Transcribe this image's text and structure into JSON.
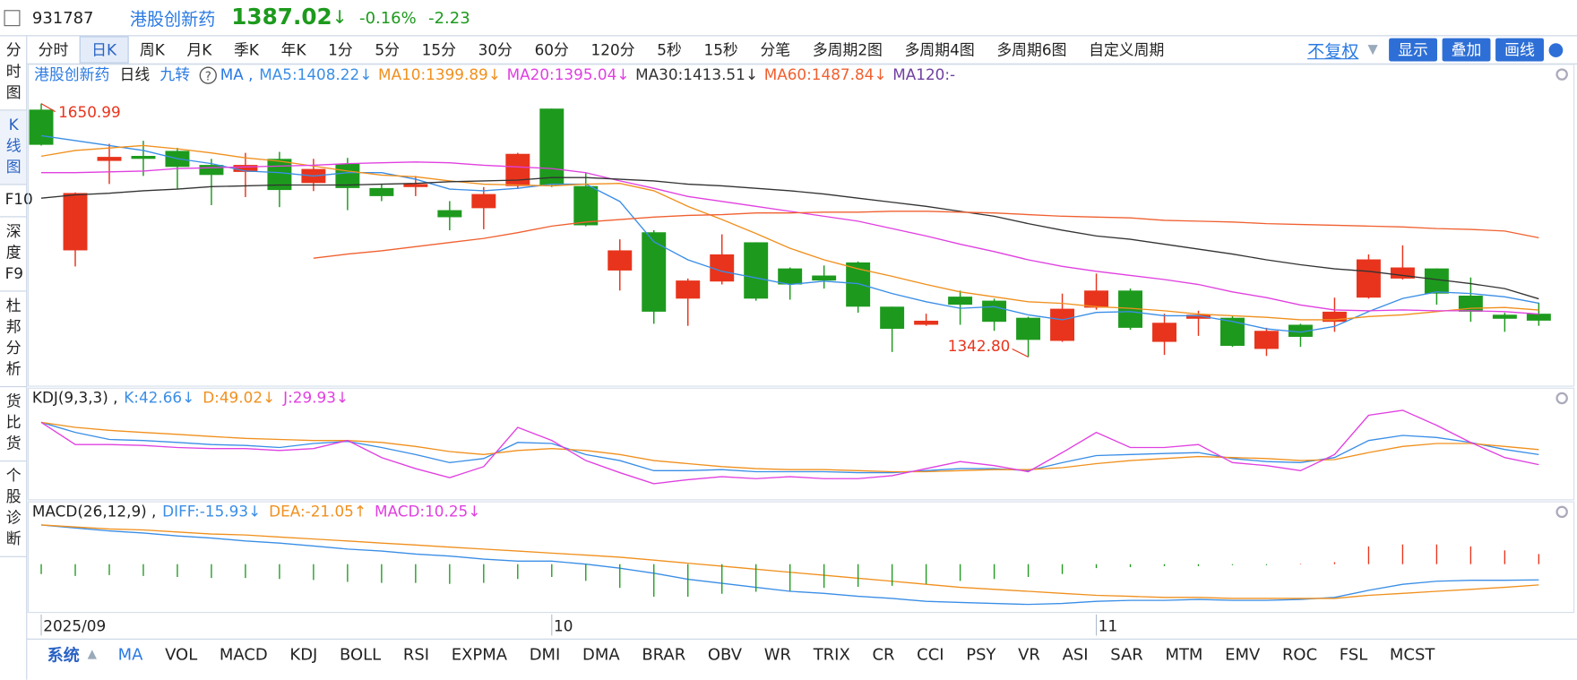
{
  "header": {
    "code": "931787",
    "name": "港股创新药",
    "price": "1387.02",
    "arrow": "↓",
    "change_pct": "-0.16%",
    "change": "-2.23"
  },
  "period_tabs": [
    "分时",
    "日K",
    "周K",
    "月K",
    "季K",
    "年K",
    "1分",
    "5分",
    "15分",
    "30分",
    "60分",
    "120分",
    "5秒",
    "15秒",
    "分笔",
    "多周期2图",
    "多周期4图",
    "多周期6图",
    "自定义周期"
  ],
  "active_period": "日K",
  "toolbar": {
    "adjust": "不复权",
    "buttons": [
      "显示",
      "叠加",
      "画线"
    ]
  },
  "sidebar_tabs": [
    "分时图",
    "K线图",
    "F10",
    "深度F9",
    "杜邦分析",
    "货比货",
    "个股诊断"
  ],
  "active_sidebar": "K线图",
  "indicator_tabs": {
    "system": "系统",
    "items": [
      "MA",
      "VOL",
      "MACD",
      "KDJ",
      "BOLL",
      "RSI",
      "EXPMA",
      "DMI",
      "DMA",
      "BRAR",
      "OBV",
      "WR",
      "TRIX",
      "CR",
      "CCI",
      "PSY",
      "VR",
      "ASI",
      "SAR",
      "MTM",
      "EMV",
      "ROC",
      "FSL",
      "MCST"
    ],
    "active": "MA"
  },
  "chart_data": [
    {
      "type": "candlestick",
      "legend_prefix": [
        "港股创新药",
        "日线",
        "九转"
      ],
      "legend_ma": "MA ,",
      "categories": [
        "2025/09",
        null,
        null,
        null,
        null,
        null,
        null,
        null,
        null,
        null,
        null,
        null,
        null,
        null,
        null,
        "10",
        null,
        null,
        null,
        null,
        null,
        null,
        null,
        null,
        null,
        null,
        null,
        null,
        null,
        null,
        null,
        "11",
        null,
        null,
        null,
        null,
        null,
        null,
        null,
        null,
        null,
        null,
        null,
        null,
        null
      ],
      "open": [
        1643.7,
        1472.5,
        1581.3,
        1587.4,
        1593.5,
        1576.4,
        1567.9,
        1583.8,
        1554.4,
        1577.7,
        1548.3,
        1549.5,
        1521.4,
        1523.8,
        1550.7,
        1644.9,
        1550.7,
        1448.0,
        1494.5,
        1413.8,
        1434.6,
        1482.3,
        1450.5,
        1441.9,
        1457.8,
        1404.0,
        1382.0,
        1416.2,
        1411.3,
        1390.5,
        1362.4,
        1402.8,
        1423.6,
        1361.2,
        1389.3,
        1390.5,
        1352.6,
        1382.0,
        1385.6,
        1415.0,
        1438.2,
        1450.5,
        1417.4,
        1394.2,
        1395.4
      ],
      "high": [
        1650.99,
        1543.0,
        1602.1,
        1605.8,
        1597.2,
        1583.8,
        1591.1,
        1592.3,
        1583.8,
        1585.0,
        1553.2,
        1563.0,
        1532.4,
        1549.5,
        1591.1,
        1644.9,
        1566.6,
        1485.9,
        1497.0,
        1438.2,
        1492.0,
        1482.3,
        1451.7,
        1454.1,
        1459.0,
        1404.0,
        1395.4,
        1423.6,
        1413.8,
        1391.8,
        1419.9,
        1444.3,
        1426.0,
        1395.4,
        1399.1,
        1393.0,
        1378.3,
        1383.2,
        1415.0,
        1467.6,
        1478.6,
        1450.5,
        1439.5,
        1396.6,
        1408.9
      ],
      "low": [
        1600.0,
        1452.9,
        1553.2,
        1563.0,
        1547.1,
        1527.5,
        1537.3,
        1525.1,
        1544.6,
        1521.4,
        1532.4,
        1538.5,
        1496.9,
        1498.2,
        1547.1,
        1549.5,
        1501.8,
        1423.6,
        1383.2,
        1380.7,
        1431.0,
        1411.3,
        1412.5,
        1426.0,
        1396.6,
        1348.9,
        1380.7,
        1382.0,
        1374.6,
        1342.8,
        1361.2,
        1400.3,
        1375.9,
        1345.3,
        1368.5,
        1355.1,
        1344.1,
        1355.1,
        1373.4,
        1413.8,
        1437.0,
        1406.4,
        1385.6,
        1373.4,
        1380.7
      ],
      "close": [
        1600.9,
        1542.2,
        1586.2,
        1583.8,
        1574.0,
        1564.2,
        1576.4,
        1545.9,
        1571.5,
        1548.3,
        1538.5,
        1553.2,
        1512.8,
        1541.0,
        1589.9,
        1552.0,
        1503.0,
        1472.5,
        1397.9,
        1435.8,
        1467.6,
        1413.8,
        1431.0,
        1435.8,
        1404.0,
        1377.1,
        1386.9,
        1406.4,
        1385.6,
        1363.6,
        1401.5,
        1423.6,
        1378.3,
        1384.4,
        1394.2,
        1356.3,
        1374.6,
        1367.3,
        1397.9,
        1461.5,
        1451.7,
        1419.9,
        1397.9,
        1389.3,
        1387.02
      ],
      "up_color": "#e8341c",
      "down_color": "#1d9a1d",
      "ylim": [
        1310,
        1670
      ],
      "high_label": "1650.99",
      "low_label": "1342.80",
      "series": [
        {
          "name": "MA5:1408.22↓",
          "color": "#3a8ee6",
          "values": [
            1612,
            1606,
            1600,
            1594,
            1584,
            1578,
            1569,
            1567,
            1563,
            1567,
            1567,
            1559,
            1547,
            1545,
            1548,
            1553,
            1553,
            1532,
            1483,
            1461,
            1447,
            1439,
            1431,
            1435,
            1432,
            1420,
            1410,
            1402,
            1404,
            1394,
            1388,
            1397,
            1398,
            1393,
            1393,
            1386,
            1377,
            1373,
            1380,
            1398,
            1414,
            1422,
            1420,
            1416,
            1408.22
          ]
        },
        {
          "name": "MA10:1399.89↓",
          "color": "#f0901e",
          "values": [
            1587,
            1594,
            1597,
            1600,
            1596,
            1591,
            1585,
            1581,
            1575,
            1569,
            1564,
            1562,
            1557,
            1553,
            1552,
            1551,
            1553,
            1554,
            1545,
            1526,
            1510,
            1493,
            1475,
            1461,
            1450,
            1441,
            1431,
            1422,
            1416,
            1410,
            1408,
            1404,
            1402,
            1399,
            1395,
            1393,
            1391,
            1388,
            1388,
            1392,
            1394,
            1398,
            1402,
            1403,
            1399.89
          ]
        },
        {
          "name": "MA20:1395.04↓",
          "color": "#e040e0",
          "values": [
            1567,
            1567,
            1568,
            1569,
            1572,
            1573,
            1574,
            1575,
            1576,
            1578,
            1579,
            1580,
            1579,
            1576,
            1574,
            1572,
            1567,
            1557,
            1548,
            1538,
            1532,
            1526,
            1520,
            1514,
            1508,
            1499,
            1490,
            1480,
            1471,
            1461,
            1453,
            1447,
            1442,
            1437,
            1431,
            1422,
            1415,
            1406,
            1400,
            1399,
            1400,
            1399,
            1399,
            1398,
            1395.04
          ]
        },
        {
          "name": "MA30:1413.51↓",
          "color": "#333333",
          "values": [
            1536,
            1540,
            1542,
            1545,
            1547,
            1550,
            1551,
            1552,
            1552,
            1552,
            1553,
            1554,
            1556,
            1557,
            1558,
            1561,
            1561,
            1559,
            1557,
            1553,
            1551,
            1548,
            1545,
            1541,
            1536,
            1531,
            1526,
            1520,
            1514,
            1505,
            1497,
            1490,
            1486,
            1480,
            1474,
            1468,
            1461,
            1455,
            1450,
            1447,
            1442,
            1437,
            1432,
            1426,
            1413.51
          ]
        },
        {
          "name": "MA60:1487.84↓",
          "color": "#f06030",
          "values": [
            null,
            null,
            null,
            null,
            null,
            null,
            null,
            null,
            1463,
            1468,
            1472,
            1477,
            1482,
            1487,
            1494,
            1502,
            1507,
            1510,
            1513,
            1515,
            1516,
            1518,
            1518,
            1519,
            1519,
            1520,
            1520,
            1519,
            1518,
            1516,
            1514,
            1513,
            1512,
            1509,
            1508,
            1507,
            1505,
            1504,
            1503,
            1502,
            1501,
            1499,
            1498,
            1496,
            1487.84
          ]
        },
        {
          "name": "MA120:-",
          "color": "#7040a0",
          "values": [
            null,
            null,
            null,
            null,
            null,
            null,
            null,
            null,
            null,
            null,
            null,
            null,
            null,
            null,
            null,
            null,
            null,
            null,
            null,
            null,
            null,
            null,
            null,
            null,
            null,
            null,
            null,
            null,
            null,
            null,
            null,
            null,
            null,
            null,
            null,
            null,
            null,
            null,
            null,
            null,
            null,
            null,
            null,
            null,
            null
          ]
        }
      ]
    },
    {
      "type": "line",
      "title": "KDJ(9,3,3) ,",
      "ylim": [
        -12,
        124
      ],
      "series": [
        {
          "name": "K:42.66↓",
          "color": "#3a8ee6",
          "values": [
            83.4,
            70.7,
            61.8,
            60.5,
            58.0,
            55.4,
            54.2,
            51.6,
            56.7,
            59.3,
            51.6,
            42.7,
            32.5,
            37.6,
            58.0,
            56.7,
            42.7,
            35.1,
            22.3,
            22.3,
            23.6,
            21.0,
            21.0,
            21.0,
            19.8,
            19.8,
            22.3,
            24.9,
            24.9,
            22.3,
            32.5,
            41.4,
            42.7,
            44.0,
            45.2,
            37.6,
            33.8,
            32.5,
            38.9,
            60.5,
            66.9,
            64.3,
            58.0,
            49.1,
            42.66
          ]
        },
        {
          "name": "D:49.02↓",
          "color": "#f0901e",
          "values": [
            83.4,
            77.1,
            73.3,
            70.7,
            68.2,
            65.6,
            63.1,
            61.8,
            60.5,
            60.5,
            58.0,
            52.9,
            46.5,
            42.7,
            47.8,
            50.3,
            47.8,
            42.7,
            35.1,
            31.2,
            27.4,
            24.9,
            23.6,
            23.6,
            22.3,
            21.0,
            21.0,
            22.3,
            23.6,
            23.6,
            26.1,
            31.2,
            35.1,
            37.6,
            40.2,
            38.9,
            37.6,
            35.1,
            36.3,
            45.2,
            52.9,
            56.7,
            56.7,
            52.9,
            49.02
          ]
        },
        {
          "name": "J:29.93↓",
          "color": "#e040e0",
          "values": [
            83.4,
            55.4,
            55.4,
            54.2,
            51.6,
            50.3,
            50.3,
            47.8,
            50.3,
            60.5,
            38.9,
            24.9,
            13.4,
            27.4,
            77.1,
            60.5,
            35.1,
            19.8,
            5.8,
            10.9,
            14.7,
            12.2,
            14.7,
            12.2,
            12.2,
            16.0,
            24.9,
            33.8,
            28.7,
            21.0,
            45.2,
            70.7,
            51.6,
            51.6,
            55.4,
            32.5,
            28.7,
            22.3,
            42.7,
            92.4,
            98.7,
            79.6,
            58.0,
            38.9,
            29.93
          ]
        }
      ]
    },
    {
      "type": "combo",
      "title": "MACD(26,12,9) ,",
      "ylim": [
        -48,
        62
      ],
      "up_color": "#e8341c",
      "down_color": "#1d9a1d",
      "series": [
        {
          "name": "DIFF:-15.93↓",
          "color": "#3a8ee6",
          "kind": "line",
          "values": [
            39.8,
            36.7,
            33.7,
            31.6,
            28.6,
            26.5,
            23.5,
            21.4,
            18.4,
            15.3,
            13.3,
            10.2,
            8.2,
            5.1,
            3.1,
            3.1,
            0,
            -4.1,
            -9.2,
            -15.3,
            -19.4,
            -23.5,
            -27.5,
            -29.6,
            -32.6,
            -34.7,
            -37.7,
            -38.8,
            -39.8,
            -40.8,
            -39.8,
            -37.7,
            -36.7,
            -36.7,
            -35.7,
            -36.7,
            -36.7,
            -35.7,
            -33.7,
            -26.5,
            -20.4,
            -17.3,
            -16.3,
            -16.3,
            -15.93
          ]
        },
        {
          "name": "DEA:-21.05↑",
          "color": "#f0901e",
          "kind": "line",
          "values": [
            39.8,
            37.7,
            35.7,
            34.7,
            32.6,
            30.6,
            29.6,
            27.5,
            25.5,
            23.5,
            21.4,
            19.4,
            17.3,
            15.3,
            13.3,
            11.2,
            9.2,
            7.1,
            4.1,
            1.0,
            -2.0,
            -5.1,
            -8.2,
            -11.2,
            -14.3,
            -17.3,
            -20.4,
            -23.5,
            -25.5,
            -27.5,
            -29.6,
            -31.6,
            -32.6,
            -33.7,
            -33.7,
            -34.7,
            -34.7,
            -34.7,
            -34.7,
            -31.6,
            -29.6,
            -27.5,
            -25.5,
            -23.5,
            -21.05
          ]
        },
        {
          "name": "MACD:10.25↓",
          "color": "#e040e0",
          "kind": "bar",
          "values": [
            -10,
            -12,
            -11,
            -12,
            -13,
            -14,
            -14,
            -15,
            -16,
            -18,
            -19,
            -19,
            -20,
            -19,
            -15,
            -13,
            -17,
            -24,
            -33,
            -33,
            -30,
            -28,
            -27,
            -24,
            -23,
            -22,
            -20,
            -17,
            -15,
            -13,
            -10,
            -4,
            -3,
            -2,
            -2,
            -1,
            -1,
            0.5,
            2,
            18,
            20,
            20,
            18,
            14,
            10.25
          ]
        }
      ]
    }
  ]
}
